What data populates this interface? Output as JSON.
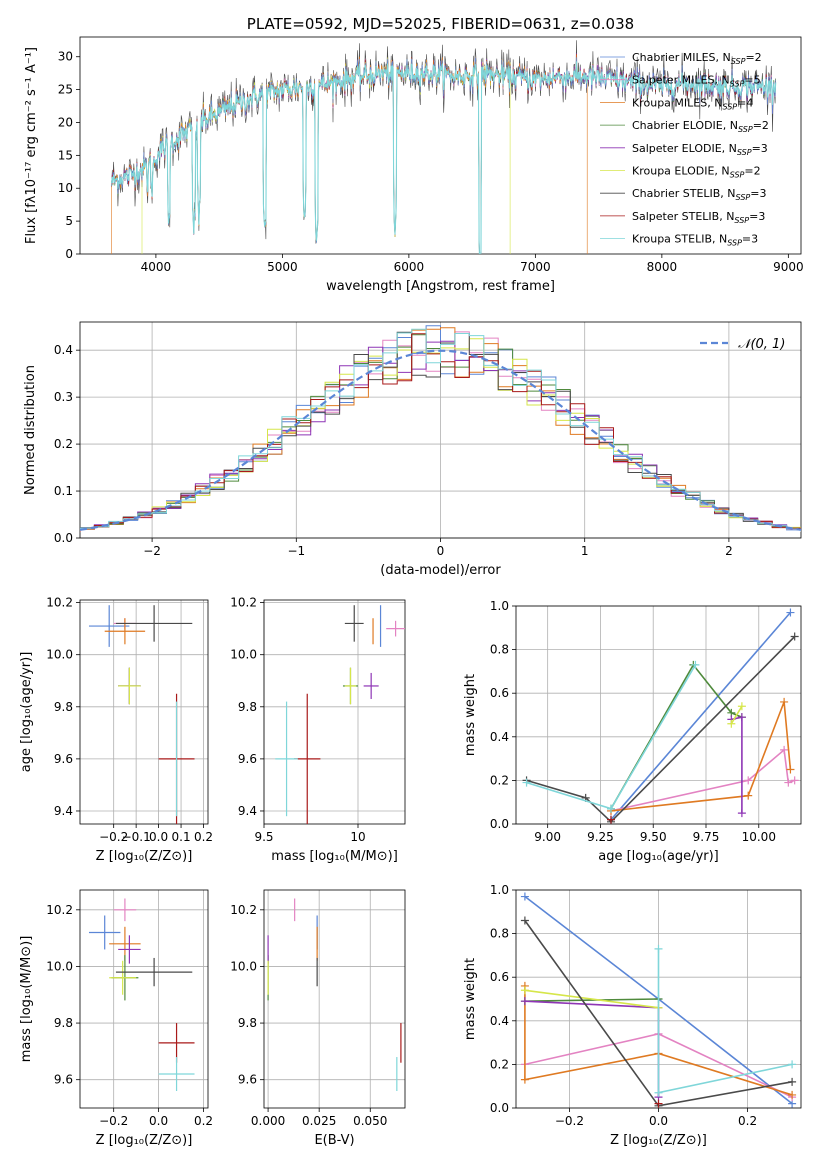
{
  "colors": {
    "Chabrier MILES": "#5b86d6",
    "Salpeter MILES": "#e383c2",
    "Kroupa MILES": "#df7a22",
    "Chabrier ELODIE": "#4f8a3c",
    "Salpeter ELODIE": "#8e35b5",
    "Kroupa ELODIE": "#d6e64a",
    "Chabrier STELIB": "#4a4a4a",
    "Salpeter STELIB": "#a81a1a",
    "Kroupa STELIB": "#7fd6d9",
    "normal": "#5b86d6"
  },
  "chart_data": [
    {
      "id": "spectrum",
      "type": "line",
      "title": "PLATE=0592, MJD=52025, FIBERID=0631, z=0.038",
      "xlabel": "wavelength [Angstrom, rest frame]",
      "ylabel": "Flux [fλ10⁻¹⁷ erg cm⁻² s⁻¹ A⁻¹]",
      "xlim": [
        3400,
        9100
      ],
      "ylim": [
        0,
        33
      ],
      "xticks": [
        4000,
        5000,
        6000,
        7000,
        8000,
        9000
      ],
      "yticks": [
        0,
        5,
        10,
        15,
        20,
        25,
        30
      ],
      "legend_position": "upper-right",
      "legend": [
        {
          "model": "Chabrier MILES",
          "label": "Chabrier MILES, N",
          "sub": "SSP",
          "tail": "=2"
        },
        {
          "model": "Salpeter MILES",
          "label": "Salpeter MILES, N",
          "sub": "SSP",
          "tail": "=5"
        },
        {
          "model": "Kroupa MILES",
          "label": "Kroupa MILES, N",
          "sub": "SSP",
          "tail": "=4"
        },
        {
          "model": "Chabrier ELODIE",
          "label": "Chabrier ELODIE, N",
          "sub": "SSP",
          "tail": "=2"
        },
        {
          "model": "Salpeter ELODIE",
          "label": "Salpeter ELODIE, N",
          "sub": "SSP",
          "tail": "=3"
        },
        {
          "model": "Kroupa ELODIE",
          "label": "Kroupa ELODIE, N",
          "sub": "SSP",
          "tail": "=2"
        },
        {
          "model": "Chabrier STELIB",
          "label": "Chabrier STELIB, N",
          "sub": "SSP",
          "tail": "=3"
        },
        {
          "model": "Salpeter STELIB",
          "label": "Salpeter STELIB, N",
          "sub": "SSP",
          "tail": "=3"
        },
        {
          "model": "Kroupa STELIB",
          "label": "Kroupa STELIB, N",
          "sub": "SSP",
          "tail": "=3"
        }
      ],
      "continuum": [
        [
          3650,
          11
        ],
        [
          3800,
          12
        ],
        [
          3950,
          13.5
        ],
        [
          4050,
          16
        ],
        [
          4200,
          18
        ],
        [
          4400,
          20.5
        ],
        [
          4600,
          22.5
        ],
        [
          4800,
          24
        ],
        [
          5000,
          25
        ],
        [
          5200,
          25.5
        ],
        [
          5400,
          26
        ],
        [
          5600,
          27
        ],
        [
          5800,
          27.5
        ],
        [
          6000,
          27.5
        ],
        [
          6200,
          27.5
        ],
        [
          6400,
          27
        ],
        [
          6600,
          27.5
        ],
        [
          6800,
          27
        ],
        [
          7000,
          26.5
        ],
        [
          7200,
          27
        ],
        [
          7400,
          27
        ],
        [
          7600,
          26.5
        ],
        [
          7800,
          26
        ],
        [
          8000,
          25.5
        ],
        [
          8200,
          26
        ],
        [
          8500,
          25.5
        ],
        [
          8800,
          25.5
        ],
        [
          8900,
          25.5
        ]
      ],
      "dips": [
        [
          3934,
          10
        ],
        [
          3969,
          9
        ],
        [
          4102,
          4
        ],
        [
          4300,
          3
        ],
        [
          4340,
          5
        ],
        [
          4861,
          3
        ],
        [
          5175,
          5
        ],
        [
          5270,
          2
        ],
        [
          5890,
          3
        ],
        [
          6563,
          -2
        ]
      ],
      "truncations": [
        {
          "model": "Kroupa ELODIE",
          "start": 3890,
          "end": 6800
        },
        {
          "model": "Kroupa MILES",
          "start": 3650,
          "end": 7410
        }
      ]
    },
    {
      "id": "residuals",
      "type": "histogram",
      "xlabel": "(data-model)/error",
      "ylabel": "Normed distribution",
      "xlim": [
        -2.5,
        2.5
      ],
      "ylim": [
        0,
        0.46
      ],
      "xticks": [
        -2,
        -1,
        0,
        1,
        2
      ],
      "yticks": [
        0,
        0.1,
        0.2,
        0.3,
        0.4
      ],
      "bin_width": 0.1,
      "curve_label": "𝒩(0, 1)",
      "legend_position": "upper-right"
    },
    {
      "id": "z-age",
      "type": "scatter",
      "xlabel": "Z [log₁₀(Z/Z⊙)]",
      "ylabel": "age  [log₁₀(age/yr)]",
      "xlim": [
        -0.35,
        0.22
      ],
      "ylim": [
        9.35,
        10.21
      ],
      "xticks": [
        -0.2,
        -0.1,
        0.0,
        0.1,
        0.2
      ],
      "xticklabels": [
        "−0.2",
        "−0.1",
        "0.0",
        "0.1",
        "0.2"
      ],
      "yticks": [
        9.4,
        9.6,
        9.8,
        10.0,
        10.2
      ],
      "points": [
        {
          "model": "Chabrier MILES",
          "x": -0.22,
          "xerr": 0.09,
          "y": 10.11,
          "yerr": 0.08
        },
        {
          "model": "Salpeter MILES",
          "x": -0.15,
          "xerr": 0.05,
          "y": 10.12,
          "yerr": 0.02
        },
        {
          "model": "Kroupa MILES",
          "x": -0.15,
          "xerr": 0.09,
          "y": 10.09,
          "yerr": 0.05
        },
        {
          "model": "Chabrier ELODIE",
          "x": -0.13,
          "xerr": 0.05,
          "y": 9.88,
          "yerr": 0.07
        },
        {
          "model": "Salpeter ELODIE",
          "x": -0.13,
          "xerr": 0.05,
          "y": 9.88,
          "yerr": 0.07
        },
        {
          "model": "Kroupa ELODIE",
          "x": -0.13,
          "xerr": 0.05,
          "y": 9.88,
          "yerr": 0.07
        },
        {
          "model": "Chabrier STELIB",
          "x": -0.02,
          "xerr": 0.17,
          "y": 10.12,
          "yerr": 0.07
        },
        {
          "model": "Salpeter STELIB",
          "x": 0.08,
          "xerr": 0.08,
          "y": 9.6,
          "yerr": 0.25
        },
        {
          "model": "Kroupa STELIB",
          "x": 0.08,
          "xerr": 0.0,
          "y": 9.6,
          "yerr": 0.22
        }
      ]
    },
    {
      "id": "mass-age",
      "type": "scatter",
      "xlabel": "mass [log₁₀(M/M⊙)]",
      "xlim": [
        9.5,
        10.25
      ],
      "ylim": [
        9.35,
        10.21
      ],
      "xticks": [
        9.5,
        10.0
      ],
      "yticks": [
        9.4,
        9.6,
        9.8,
        10.0,
        10.2
      ],
      "points": [
        {
          "model": "Chabrier MILES",
          "x": 10.12,
          "xerr": 0.0,
          "y": 10.11,
          "yerr": 0.08
        },
        {
          "model": "Salpeter MILES",
          "x": 10.2,
          "xerr": 0.05,
          "y": 10.1,
          "yerr": 0.03
        },
        {
          "model": "Kroupa MILES",
          "x": 10.08,
          "xerr": 0.0,
          "y": 10.09,
          "yerr": 0.05
        },
        {
          "model": "Chabrier ELODIE",
          "x": 9.96,
          "xerr": 0.04,
          "y": 9.88,
          "yerr": 0.07
        },
        {
          "model": "Salpeter ELODIE",
          "x": 10.07,
          "xerr": 0.04,
          "y": 9.88,
          "yerr": 0.05
        },
        {
          "model": "Kroupa ELODIE",
          "x": 9.96,
          "xerr": 0.03,
          "y": 9.88,
          "yerr": 0.07
        },
        {
          "model": "Chabrier STELIB",
          "x": 9.98,
          "xerr": 0.05,
          "y": 10.12,
          "yerr": 0.07
        },
        {
          "model": "Salpeter STELIB",
          "x": 9.73,
          "xerr": 0.07,
          "y": 9.6,
          "yerr": 0.25
        },
        {
          "model": "Kroupa STELIB",
          "x": 9.62,
          "xerr": 0.06,
          "y": 9.6,
          "yerr": 0.22
        }
      ]
    },
    {
      "id": "age-weights",
      "type": "line",
      "xlabel": "age  [log₁₀(age/yr)]",
      "ylabel": "mass weight",
      "xlim": [
        8.85,
        10.2
      ],
      "ylim": [
        0,
        1
      ],
      "xticks": [
        9.0,
        9.25,
        9.5,
        9.75,
        10.0
      ],
      "xticklabels": [
        "9.00",
        "9.25",
        "9.50",
        "9.75",
        "10.00"
      ],
      "yticks": [
        0,
        0.2,
        0.4,
        0.6,
        0.8,
        1.0
      ],
      "series": [
        {
          "model": "Chabrier MILES",
          "points": [
            [
              9.3,
              0.02
            ],
            [
              10.15,
              0.97
            ]
          ]
        },
        {
          "model": "Salpeter MILES",
          "points": [
            [
              9.3,
              0.06
            ],
            [
              9.95,
              0.2
            ],
            [
              10.12,
              0.34
            ],
            [
              10.14,
              0.19
            ],
            [
              10.17,
              0.2
            ]
          ]
        },
        {
          "model": "Kroupa MILES",
          "points": [
            [
              9.3,
              0.06
            ],
            [
              9.95,
              0.13
            ],
            [
              10.12,
              0.56
            ],
            [
              10.15,
              0.25
            ]
          ]
        },
        {
          "model": "Chabrier ELODIE",
          "points": [
            [
              9.3,
              0.07
            ],
            [
              9.69,
              0.73
            ],
            [
              9.87,
              0.51
            ],
            [
              9.92,
              0.49
            ]
          ]
        },
        {
          "model": "Salpeter ELODIE",
          "points": [
            [
              9.87,
              0.48
            ],
            [
              9.92,
              0.49
            ],
            [
              9.92,
              0.05
            ]
          ]
        },
        {
          "model": "Kroupa ELODIE",
          "points": [
            [
              9.87,
              0.46
            ],
            [
              9.92,
              0.54
            ]
          ]
        },
        {
          "model": "Chabrier STELIB",
          "points": [
            [
              8.9,
              0.2
            ],
            [
              9.18,
              0.12
            ],
            [
              9.3,
              0.01
            ],
            [
              10.17,
              0.86
            ]
          ]
        },
        {
          "model": "Salpeter STELIB",
          "points": [
            [
              9.3,
              0.02
            ]
          ]
        },
        {
          "model": "Kroupa STELIB",
          "points": [
            [
              8.9,
              0.19
            ],
            [
              9.3,
              0.07
            ],
            [
              9.7,
              0.73
            ]
          ]
        }
      ]
    },
    {
      "id": "z-mass",
      "type": "scatter",
      "xlabel": "Z [log₁₀(Z/Z⊙)]",
      "ylabel": "mass [log₁₀(M/M⊙)]",
      "xlim": [
        -0.35,
        0.22
      ],
      "ylim": [
        9.5,
        10.27
      ],
      "xticks": [
        -0.2,
        0.0,
        0.2
      ],
      "xticklabels": [
        "−0.2",
        "0.0",
        "0.2"
      ],
      "yticks": [
        9.6,
        9.8,
        10.0,
        10.2
      ],
      "points": [
        {
          "model": "Chabrier MILES",
          "x": -0.24,
          "xerr": 0.07,
          "y": 10.12,
          "yerr": 0.06
        },
        {
          "model": "Salpeter MILES",
          "x": -0.15,
          "xerr": 0.05,
          "y": 10.2,
          "yerr": 0.04
        },
        {
          "model": "Kroupa MILES",
          "x": -0.15,
          "xerr": 0.07,
          "y": 10.08,
          "yerr": 0.06
        },
        {
          "model": "Chabrier ELODIE",
          "x": -0.15,
          "xerr": 0.06,
          "y": 9.96,
          "yerr": 0.08
        },
        {
          "model": "Salpeter ELODIE",
          "x": -0.13,
          "xerr": 0.05,
          "y": 10.06,
          "yerr": 0.05
        },
        {
          "model": "Kroupa ELODIE",
          "x": -0.16,
          "xerr": 0.06,
          "y": 9.96,
          "yerr": 0.06
        },
        {
          "model": "Chabrier STELIB",
          "x": -0.02,
          "xerr": 0.17,
          "y": 9.98,
          "yerr": 0.05
        },
        {
          "model": "Salpeter STELIB",
          "x": 0.08,
          "xerr": 0.08,
          "y": 9.73,
          "yerr": 0.07
        },
        {
          "model": "Kroupa STELIB",
          "x": 0.08,
          "xerr": 0.08,
          "y": 9.62,
          "yerr": 0.06
        }
      ]
    },
    {
      "id": "ebv-mass",
      "type": "scatter",
      "xlabel": "E(B-V)",
      "xlim": [
        -0.002,
        0.067
      ],
      "ylim": [
        9.5,
        10.27
      ],
      "xticks": [
        0.0,
        0.025,
        0.05
      ],
      "xticklabels": [
        "0.000",
        "0.025",
        "0.050"
      ],
      "yticks": [
        9.6,
        9.8,
        10.0,
        10.2
      ],
      "points": [
        {
          "model": "Chabrier MILES",
          "x": 0.024,
          "xerr": 0.0,
          "y": 10.12,
          "yerr": 0.06
        },
        {
          "model": "Salpeter MILES",
          "x": 0.013,
          "xerr": 0.0,
          "y": 10.2,
          "yerr": 0.04
        },
        {
          "model": "Kroupa MILES",
          "x": 0.024,
          "xerr": 0.0,
          "y": 10.08,
          "yerr": 0.06
        },
        {
          "model": "Chabrier ELODIE",
          "x": 0.0,
          "xerr": 0.0,
          "y": 9.96,
          "yerr": 0.08
        },
        {
          "model": "Salpeter ELODIE",
          "x": 0.0,
          "xerr": 0.0,
          "y": 10.06,
          "yerr": 0.05
        },
        {
          "model": "Kroupa ELODIE",
          "x": 0.0,
          "xerr": 0.0,
          "y": 9.96,
          "yerr": 0.06
        },
        {
          "model": "Chabrier STELIB",
          "x": 0.024,
          "xerr": 0.0,
          "y": 9.98,
          "yerr": 0.05
        },
        {
          "model": "Salpeter STELIB",
          "x": 0.065,
          "xerr": 0.0,
          "y": 9.73,
          "yerr": 0.07
        },
        {
          "model": "Kroupa STELIB",
          "x": 0.063,
          "xerr": 0.0,
          "y": 9.62,
          "yerr": 0.06
        }
      ]
    },
    {
      "id": "z-weights",
      "type": "line",
      "xlabel": "Z [log₁₀(Z/Z⊙)]",
      "ylabel": "mass weight",
      "xlim": [
        -0.32,
        0.32
      ],
      "ylim": [
        0,
        1
      ],
      "xticks": [
        -0.2,
        0.0,
        0.2
      ],
      "xticklabels": [
        "−0.2",
        "0.0",
        "0.2"
      ],
      "yticks": [
        0,
        0.2,
        0.4,
        0.6,
        0.8,
        1.0
      ],
      "series": [
        {
          "model": "Chabrier MILES",
          "points": [
            [
              -0.3,
              0.97
            ],
            [
              0.0,
              0.5
            ],
            [
              0.3,
              0.02
            ]
          ]
        },
        {
          "model": "Salpeter MILES",
          "points": [
            [
              -0.3,
              0.2
            ],
            [
              0.0,
              0.34
            ],
            [
              0.3,
              0.05
            ]
          ]
        },
        {
          "model": "Kroupa MILES",
          "points": [
            [
              -0.3,
              0.56
            ],
            [
              -0.3,
              0.13
            ],
            [
              0.0,
              0.25
            ],
            [
              0.3,
              0.06
            ]
          ]
        },
        {
          "model": "Chabrier ELODIE",
          "points": [
            [
              -0.3,
              0.49
            ],
            [
              0.0,
              0.5
            ]
          ]
        },
        {
          "model": "Salpeter ELODIE",
          "points": [
            [
              -0.3,
              0.49
            ],
            [
              0.0,
              0.46
            ],
            [
              0.0,
              0.05
            ]
          ]
        },
        {
          "model": "Kroupa ELODIE",
          "points": [
            [
              -0.3,
              0.54
            ],
            [
              0.0,
              0.46
            ]
          ]
        },
        {
          "model": "Chabrier STELIB",
          "points": [
            [
              -0.3,
              0.86
            ],
            [
              0.0,
              0.01
            ],
            [
              0.3,
              0.12
            ]
          ]
        },
        {
          "model": "Salpeter STELIB",
          "points": [
            [
              0.0,
              0.02
            ]
          ]
        },
        {
          "model": "Kroupa STELIB",
          "points": [
            [
              0.0,
              0.73
            ],
            [
              0.0,
              0.07
            ],
            [
              0.3,
              0.2
            ]
          ]
        }
      ]
    }
  ]
}
